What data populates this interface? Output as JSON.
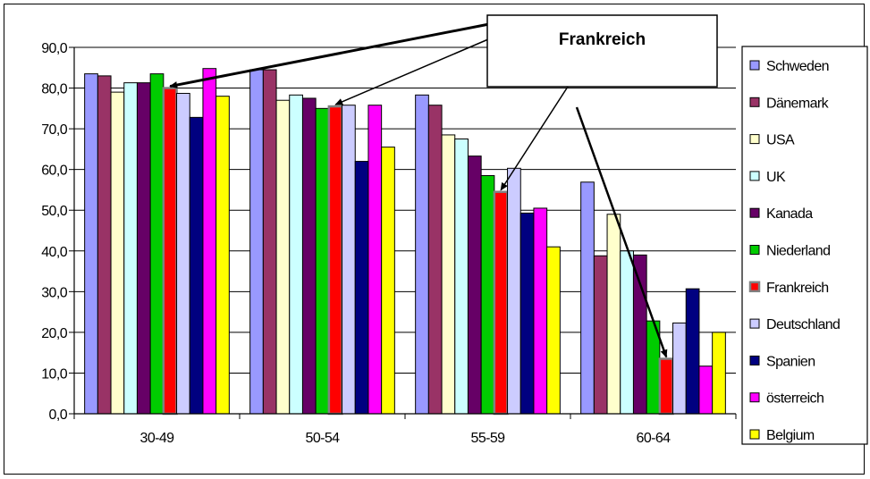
{
  "chart_data": {
    "type": "bar",
    "categories": [
      "30-49",
      "50-54",
      "55-59",
      "60-64"
    ],
    "series": [
      {
        "name": "Schweden",
        "color": "#9999ff",
        "values": [
          83.5,
          84.5,
          78.3,
          56.9
        ]
      },
      {
        "name": "Dänemark",
        "color": "#993366",
        "values": [
          83.0,
          84.5,
          75.8,
          38.8
        ]
      },
      {
        "name": "USA",
        "color": "#ffffcc",
        "values": [
          79.0,
          77.0,
          68.5,
          49.0
        ]
      },
      {
        "name": "UK",
        "color": "#ccffff",
        "values": [
          81.3,
          78.3,
          67.5,
          40.0
        ]
      },
      {
        "name": "Kanada",
        "color": "#660066",
        "values": [
          81.3,
          77.5,
          63.3,
          39.0
        ]
      },
      {
        "name": "Niederland",
        "color": "#00cc00",
        "values": [
          83.5,
          75.0,
          58.5,
          22.8
        ]
      },
      {
        "name": "Frankreich",
        "color": "#ff0000",
        "values": [
          80.0,
          75.5,
          54.5,
          13.5
        ]
      },
      {
        "name": "Deutschland",
        "color": "#ccccff",
        "values": [
          78.7,
          75.8,
          60.3,
          22.3
        ]
      },
      {
        "name": "Spanien",
        "color": "#000080",
        "values": [
          72.8,
          62.0,
          49.3,
          30.7
        ]
      },
      {
        "name": "österreich",
        "color": "#ff00ff",
        "values": [
          84.8,
          75.8,
          50.5,
          11.7
        ]
      },
      {
        "name": "Belgium",
        "color": "#ffff00",
        "values": [
          78.0,
          65.5,
          41.0,
          20.0
        ]
      }
    ],
    "ylim": [
      0,
      90
    ],
    "yticks": [
      "0,0",
      "10,0",
      "20,0",
      "30,0",
      "40,0",
      "50,0",
      "60,0",
      "70,0",
      "80,0",
      "90,0"
    ],
    "grid": true,
    "legend": "right",
    "annotation": "Frankreich",
    "highlight_series": "Frankreich"
  }
}
